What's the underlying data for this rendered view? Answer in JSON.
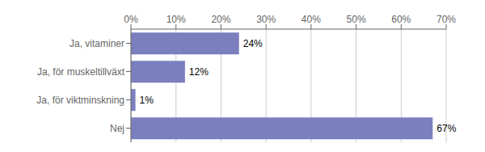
{
  "chart_data": {
    "type": "bar",
    "orientation": "horizontal",
    "categories": [
      "Ja, vitaminer",
      "Ja, för muskeltillväxt",
      "Ja, för viktminskning",
      "Nej"
    ],
    "values": [
      24,
      12,
      1,
      67
    ],
    "value_labels": [
      "24%",
      "12%",
      "1%",
      "67%"
    ],
    "data_labels": true,
    "color": "#7b7fbe",
    "xlim": [
      0,
      70
    ],
    "xticks": [
      {
        "value": 0,
        "label": "0%"
      },
      {
        "value": 10,
        "label": "10%"
      },
      {
        "value": 20,
        "label": "20%"
      },
      {
        "value": 30,
        "label": "30%"
      },
      {
        "value": 40,
        "label": "40%"
      },
      {
        "value": 50,
        "label": "50%"
      },
      {
        "value": 60,
        "label": "60%"
      },
      {
        "value": 70,
        "label": "70%"
      }
    ],
    "grid": true
  }
}
